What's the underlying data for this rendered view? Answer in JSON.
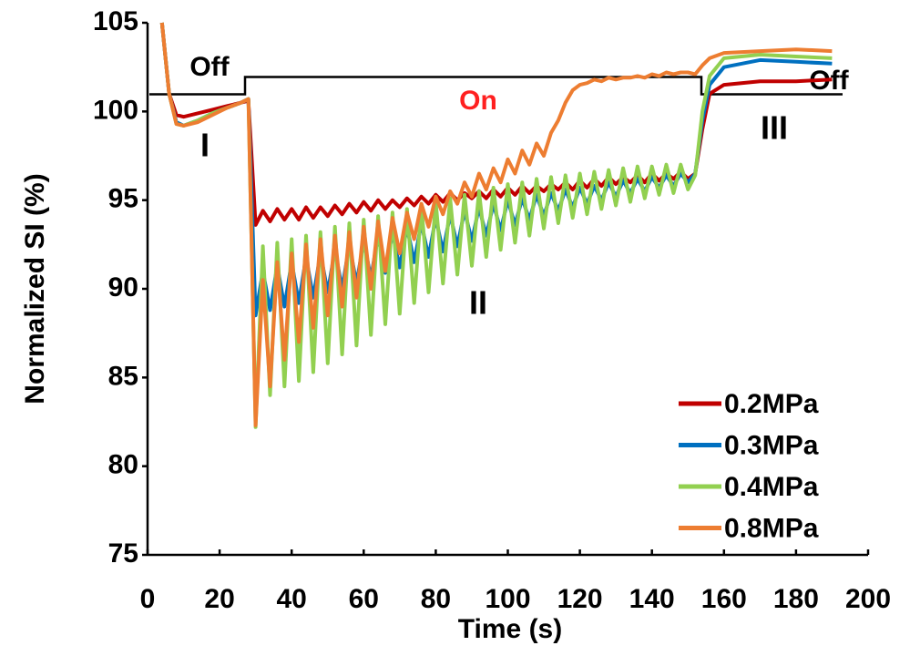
{
  "chart_data": {
    "type": "line",
    "xlabel": "Time (s)",
    "ylabel": "Normalized SI (%)",
    "annotations": [
      "Off",
      "On",
      "Off",
      "I",
      "II",
      "III"
    ],
    "x": [
      4,
      6,
      8,
      10,
      14,
      18,
      22,
      26,
      28,
      30,
      32,
      34,
      36,
      38,
      40,
      42,
      44,
      46,
      48,
      50,
      52,
      54,
      56,
      58,
      60,
      62,
      64,
      66,
      68,
      70,
      72,
      74,
      76,
      78,
      80,
      82,
      84,
      86,
      88,
      90,
      92,
      94,
      96,
      98,
      100,
      102,
      104,
      106,
      108,
      110,
      112,
      114,
      116,
      118,
      120,
      122,
      124,
      126,
      128,
      130,
      132,
      134,
      136,
      138,
      140,
      142,
      144,
      146,
      148,
      150,
      152,
      154,
      156,
      160,
      170,
      180,
      190
    ],
    "series": [
      {
        "name": "0.2MPa",
        "color": "#c00000",
        "values": [
          105,
          101,
          99.8,
          99.7,
          99.9,
          100.1,
          100.3,
          100.5,
          100.6,
          93.6,
          94.4,
          93.8,
          94.5,
          93.9,
          94.5,
          93.9,
          94.6,
          94.0,
          94.6,
          94.1,
          94.7,
          94.2,
          94.8,
          94.3,
          94.9,
          94.4,
          95.0,
          94.5,
          95.0,
          94.6,
          95.1,
          94.7,
          95.2,
          94.8,
          95.3,
          94.9,
          95.4,
          95.0,
          95.4,
          95.1,
          95.5,
          95.1,
          95.6,
          95.2,
          95.7,
          95.3,
          95.8,
          95.4,
          95.8,
          95.5,
          95.9,
          95.6,
          96.0,
          95.6,
          96.1,
          95.7,
          96.2,
          95.8,
          96.3,
          95.9,
          96.3,
          96.0,
          96.4,
          96.0,
          96.5,
          96.1,
          96.5,
          96.2,
          96.6,
          96.2,
          96.5,
          99,
          101,
          101.5,
          101.7,
          101.7,
          101.8
        ]
      },
      {
        "name": "0.3MPa",
        "color": "#0070c0",
        "values": [
          105,
          101,
          99.4,
          99.2,
          99.5,
          99.9,
          100.2,
          100.5,
          100.7,
          88.5,
          91.0,
          88.8,
          91.3,
          89.0,
          91.5,
          89.2,
          91.8,
          89.5,
          92.0,
          89.8,
          92.2,
          90.0,
          92.5,
          90.3,
          92.7,
          90.6,
          93.0,
          90.9,
          93.2,
          91.2,
          93.5,
          91.5,
          93.7,
          91.8,
          94.0,
          92.1,
          94.2,
          92.4,
          94.4,
          92.7,
          94.6,
          93.0,
          94.8,
          93.3,
          95.0,
          93.6,
          95.1,
          93.9,
          95.3,
          94.1,
          95.4,
          94.4,
          95.6,
          94.6,
          95.7,
          94.8,
          95.8,
          95.0,
          96.0,
          95.2,
          96.1,
          95.4,
          96.2,
          95.5,
          96.3,
          95.7,
          96.4,
          95.8,
          96.5,
          96.0,
          96.5,
          99.5,
          101.5,
          102.5,
          102.9,
          102.8,
          102.7
        ]
      },
      {
        "name": "0.4MPa",
        "color": "#92d050",
        "values": [
          105,
          101,
          99.3,
          99.2,
          99.5,
          99.9,
          100.2,
          100.5,
          100.7,
          82.2,
          92.4,
          84.0,
          92.6,
          84.5,
          92.8,
          84.8,
          93.0,
          85.3,
          93.2,
          85.8,
          93.5,
          86.3,
          93.7,
          86.8,
          93.9,
          87.4,
          94.1,
          88.0,
          94.3,
          88.6,
          94.5,
          89.2,
          94.7,
          89.8,
          94.9,
          90.3,
          95.1,
          90.8,
          95.3,
          91.3,
          95.5,
          91.8,
          95.7,
          92.2,
          95.9,
          92.6,
          96.0,
          93.0,
          96.2,
          93.4,
          96.3,
          93.7,
          96.4,
          94.0,
          96.5,
          94.2,
          96.6,
          94.5,
          96.7,
          94.7,
          96.8,
          94.9,
          96.9,
          95.1,
          96.9,
          95.3,
          97.0,
          95.4,
          97.0,
          95.6,
          96.4,
          100,
          102,
          103,
          103.2,
          103.1,
          103.0
        ]
      },
      {
        "name": "0.8MPa",
        "color": "#ed7d31",
        "values": [
          105,
          101,
          99.3,
          99.2,
          99.4,
          99.8,
          100.2,
          100.5,
          100.7,
          82.3,
          90.5,
          84.5,
          91.5,
          86,
          92,
          87,
          92.5,
          87.8,
          92.8,
          88.5,
          93,
          89,
          93.2,
          89.5,
          93.5,
          90,
          93.8,
          91,
          94,
          92,
          94.3,
          92.8,
          94.8,
          93.5,
          95.2,
          94.2,
          95.5,
          94.8,
          96,
          95.2,
          96.5,
          95.6,
          96.8,
          96,
          97.3,
          96.5,
          97.8,
          97,
          98.2,
          97.5,
          98.8,
          99.5,
          100.5,
          101.2,
          101.5,
          101.6,
          101.8,
          101.7,
          101.9,
          101.8,
          101.9,
          101.9,
          102.0,
          101.9,
          102.1,
          102.0,
          102.2,
          102.1,
          102.2,
          102.2,
          102.1,
          102.6,
          103.0,
          103.3,
          103.4,
          103.5,
          103.4
        ]
      }
    ],
    "xlim": [
      0,
      200
    ],
    "xticks": [
      0,
      20,
      40,
      60,
      80,
      100,
      120,
      140,
      160,
      180,
      200
    ],
    "ylim": [
      75,
      105
    ],
    "yticks": [
      75,
      80,
      85,
      90,
      95,
      100,
      105
    ],
    "grid": false,
    "legend": "lower right"
  }
}
